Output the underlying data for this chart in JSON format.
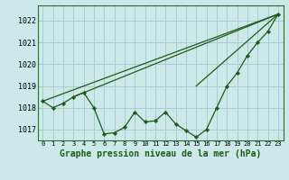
{
  "title": "Graphe pression niveau de la mer (hPa)",
  "bg_color": "#cce8e8",
  "grid_color": "#aacccc",
  "line_color": "#1a5c1a",
  "marker_color": "#1a5c1a",
  "xlim": [
    -0.5,
    23.5
  ],
  "ylim": [
    1016.5,
    1022.7
  ],
  "yticks": [
    1017,
    1018,
    1019,
    1020,
    1021,
    1022
  ],
  "xticks": [
    0,
    1,
    2,
    3,
    4,
    5,
    6,
    7,
    8,
    9,
    10,
    11,
    12,
    13,
    14,
    15,
    16,
    17,
    18,
    19,
    20,
    21,
    22,
    23
  ],
  "series1": [
    1018.3,
    1018.0,
    1018.2,
    1018.5,
    1018.7,
    1018.0,
    1016.8,
    1016.85,
    1017.1,
    1017.8,
    1017.35,
    1017.4,
    1017.8,
    1017.25,
    1016.95,
    1016.65,
    1017.0,
    1018.0,
    1019.0,
    1019.6,
    1020.4,
    1021.0,
    1021.5,
    1022.3
  ],
  "env_lines": [
    {
      "x": [
        0,
        23
      ],
      "y": [
        1018.3,
        1022.3
      ]
    },
    {
      "x": [
        3,
        23
      ],
      "y": [
        1018.5,
        1022.3
      ]
    },
    {
      "x": [
        15,
        23
      ],
      "y": [
        1019.0,
        1022.3
      ]
    }
  ]
}
